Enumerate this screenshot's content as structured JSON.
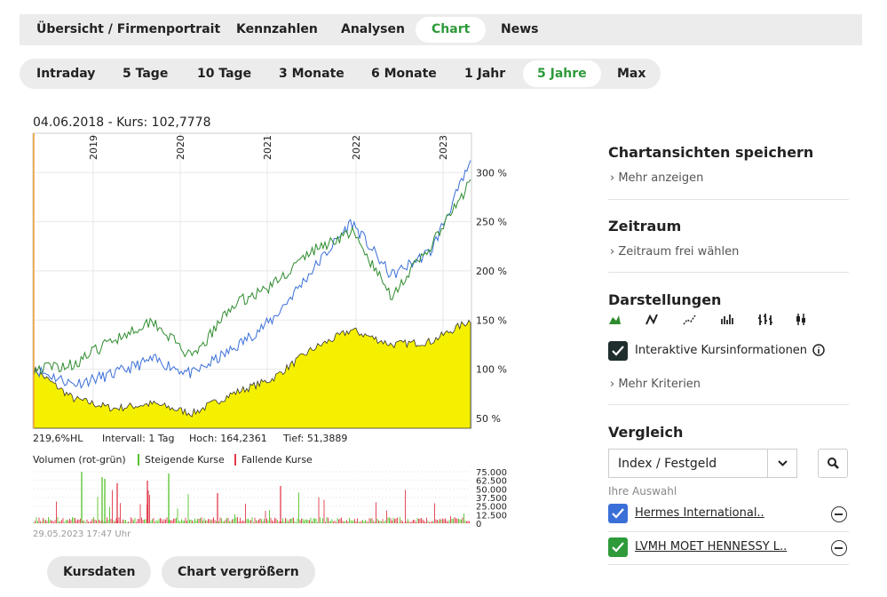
{
  "tabs": [
    "Übersicht / Firmenportrait",
    "Kennzahlen",
    "Analysen",
    "Chart",
    "News"
  ],
  "active_tab": "Chart",
  "periods": [
    "Intraday",
    "5 Tage",
    "10 Tage",
    "3 Monate",
    "6 Monate",
    "1 Jahr",
    "5 Jahre",
    "Max"
  ],
  "active_period": "5 Jahre",
  "chart": {
    "header": "04.06.2018  -  Kurs: 102,7778",
    "years": [
      "2019",
      "2020",
      "2021",
      "2022",
      "2023"
    ],
    "y_ticks": [
      "300 %",
      "250 %",
      "200 %",
      "150 %",
      "100 %",
      "50 %"
    ],
    "stats": {
      "hl": "219,6%HL",
      "interval": "Intervall: 1 Tag",
      "high": "Hoch: 164,2361",
      "low": "Tief: 51,3889"
    },
    "volume_label": "Volumen (rot-grün)",
    "rising_label": "Steigende Kurse",
    "falling_label": "Fallende Kurse",
    "vol_ticks": [
      "75.000",
      "62.500",
      "50.000",
      "37.500",
      "25.000",
      "12.500",
      "0"
    ],
    "timestamp": "29.05.2023 17:47 Uhr",
    "colors": {
      "area": "#f5f000",
      "blue": "#3a6fd8",
      "green": "#2e8b2e",
      "rise": "#55c22a",
      "fall": "#e2394a"
    }
  },
  "chart_data": {
    "type": "area",
    "title": "04.06.2018  -  Kurs: 102,7778",
    "xlabel": "",
    "ylabel": "%",
    "x": [
      "2018-06",
      "2018-12",
      "2019-06",
      "2019-12",
      "2020-03",
      "2020-06",
      "2020-12",
      "2021-06",
      "2021-12",
      "2022-06",
      "2022-12",
      "2023-05"
    ],
    "series": [
      {
        "name": "Kurs",
        "values": [
          100,
          70,
          60,
          65,
          55,
          75,
          90,
          120,
          140,
          125,
          128,
          150
        ]
      },
      {
        "name": "Hermes International",
        "values": [
          100,
          85,
          95,
          110,
          95,
          120,
          150,
          200,
          250,
          195,
          220,
          310
        ]
      },
      {
        "name": "LVMH MOET HENNESSY",
        "values": [
          100,
          105,
          130,
          150,
          110,
          165,
          185,
          220,
          240,
          175,
          225,
          290
        ]
      }
    ],
    "ylim": [
      40,
      340
    ]
  },
  "buttons": {
    "kursdaten": "Kursdaten",
    "vergroessern": "Chart vergrößern"
  },
  "sidebar": {
    "save_title": "Chartansichten speichern",
    "save_link": "Mehr anzeigen",
    "zeitraum_title": "Zeitraum",
    "zeitraum_link": "Zeitraum frei wählen",
    "darst_title": "Darstellungen",
    "interactive_label": "Interaktive Kursinformationen",
    "more_criteria": "Mehr Kriterien",
    "vergleich_title": "Vergleich",
    "select_value": "Index / Festgeld",
    "selection_label": "Ihre Auswahl",
    "comparisons": [
      {
        "name": "Hermes International..",
        "color": "#3a6fd8"
      },
      {
        "name": "LVMH MOET HENNESSY L..",
        "color": "#2e9a3a"
      }
    ]
  }
}
